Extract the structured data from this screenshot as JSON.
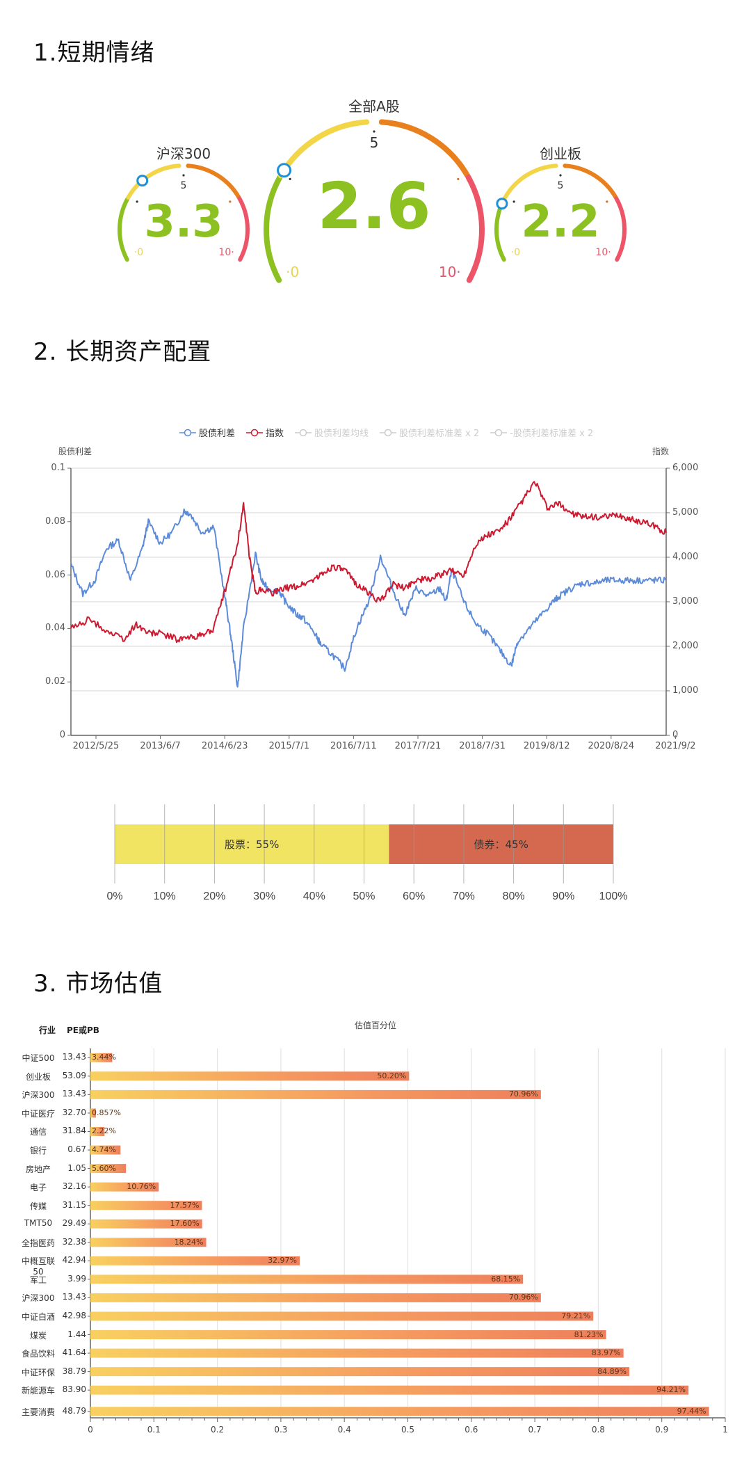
{
  "sections": {
    "s1": "1.短期情绪",
    "s2": "2. 长期资产配置",
    "s3": "3. 市场估值"
  },
  "gauges": [
    {
      "title": "沪深300",
      "value": "3.3",
      "value_num": 3.3,
      "min_label": "0",
      "mid_label": "5",
      "max_label": "10"
    },
    {
      "title": "全部A股",
      "value": "2.6",
      "value_num": 2.6,
      "min_label": "0",
      "mid_label": "5",
      "max_label": "10"
    },
    {
      "title": "创业板",
      "value": "2.2",
      "value_num": 2.2,
      "min_label": "0",
      "mid_label": "5",
      "max_label": "10"
    }
  ],
  "gauge_colors": {
    "green": "#8cc121",
    "yellow": "#f2d648",
    "orange": "#e8801d",
    "red": "#ee5468",
    "pointer": "#1f8fd6",
    "value": "#8cc121"
  },
  "chart_data": [
    {
      "type": "line",
      "title": "",
      "legend": [
        {
          "name": "股债利差",
          "color": "#5b8bd9",
          "active": true
        },
        {
          "name": "指数",
          "color": "#cc1a30",
          "active": true
        },
        {
          "name": "股债利差均线",
          "color": "#cccccc",
          "active": false
        },
        {
          "name": "股债利差标准差 x 2",
          "color": "#cccccc",
          "active": false
        },
        {
          "name": "-股债利差标准差 x 2",
          "color": "#cccccc",
          "active": false
        }
      ],
      "ylabel_left": "股债利差",
      "ylabel_right": "指数",
      "ylim_left": [
        0,
        0.1
      ],
      "ylim_right": [
        0,
        6000
      ],
      "yticks_left": [
        "0.1",
        "0.08",
        "0.06",
        "0.04",
        "0.02",
        "0"
      ],
      "yticks_right": [
        "6,000",
        "5,000",
        "4,000",
        "3,000",
        "2,000",
        "1,000",
        "0"
      ],
      "x_ticks": [
        "2012/5/25",
        "2013/6/7",
        "2014/6/23",
        "2015/7/1",
        "2016/7/11",
        "2017/7/21",
        "2018/7/31",
        "2019/8/12",
        "2020/8/24",
        "2021/9/2"
      ],
      "series": [
        {
          "name": "股债利差",
          "axis": "left",
          "x": [
            0,
            0.02,
            0.04,
            0.06,
            0.08,
            0.1,
            0.12,
            0.13,
            0.15,
            0.17,
            0.19,
            0.2,
            0.22,
            0.24,
            0.26,
            0.27,
            0.28,
            0.29,
            0.31,
            0.32,
            0.33,
            0.35,
            0.36,
            0.38,
            0.39,
            0.41,
            0.42,
            0.44,
            0.46,
            0.48,
            0.5,
            0.52,
            0.54,
            0.56,
            0.58,
            0.6,
            0.62,
            0.63,
            0.64,
            0.66,
            0.68,
            0.7,
            0.72,
            0.74,
            0.75,
            0.77,
            0.79,
            0.81,
            0.82,
            0.84,
            0.86,
            0.88,
            0.9,
            0.92,
            0.94,
            0.96,
            0.98,
            1.0
          ],
          "values": [
            0.064,
            0.053,
            0.058,
            0.07,
            0.073,
            0.058,
            0.07,
            0.08,
            0.072,
            0.076,
            0.084,
            0.083,
            0.076,
            0.078,
            0.05,
            0.035,
            0.018,
            0.04,
            0.068,
            0.058,
            0.055,
            0.054,
            0.05,
            0.045,
            0.044,
            0.038,
            0.034,
            0.03,
            0.025,
            0.04,
            0.05,
            0.067,
            0.055,
            0.045,
            0.055,
            0.052,
            0.055,
            0.05,
            0.062,
            0.05,
            0.042,
            0.038,
            0.032,
            0.026,
            0.035,
            0.04,
            0.045,
            0.05,
            0.052,
            0.055,
            0.057,
            0.057,
            0.058,
            0.058,
            0.058,
            0.058,
            0.058,
            0.058
          ]
        },
        {
          "name": "指数",
          "axis": "right",
          "x": [
            0,
            0.03,
            0.06,
            0.09,
            0.11,
            0.13,
            0.15,
            0.18,
            0.2,
            0.22,
            0.24,
            0.26,
            0.28,
            0.29,
            0.3,
            0.31,
            0.32,
            0.34,
            0.36,
            0.38,
            0.4,
            0.42,
            0.44,
            0.46,
            0.48,
            0.5,
            0.52,
            0.54,
            0.56,
            0.58,
            0.6,
            0.62,
            0.64,
            0.66,
            0.68,
            0.7,
            0.72,
            0.74,
            0.76,
            0.78,
            0.8,
            0.82,
            0.84,
            0.86,
            0.88,
            0.9,
            0.92,
            0.94,
            0.96,
            0.98,
            1.0
          ],
          "values": [
            2400,
            2600,
            2350,
            2150,
            2500,
            2300,
            2300,
            2150,
            2200,
            2250,
            2400,
            3300,
            4300,
            5200,
            4000,
            3200,
            3300,
            3200,
            3300,
            3350,
            3450,
            3600,
            3800,
            3700,
            3400,
            3200,
            3000,
            3400,
            3300,
            3500,
            3500,
            3600,
            3700,
            3600,
            4300,
            4500,
            4600,
            4900,
            5300,
            5700,
            5100,
            5200,
            5000,
            4900,
            4900,
            4900,
            4950,
            4850,
            4800,
            4700,
            4550
          ]
        }
      ]
    },
    {
      "type": "bar",
      "orientation": "horizontal-stacked",
      "categories": [
        "股票",
        "债券"
      ],
      "values": [
        55,
        45
      ],
      "labels": [
        "股票：55%",
        "债券：45%"
      ],
      "colors": [
        "#f2e463",
        "#d4694f"
      ],
      "x_ticks": [
        "0%",
        "10%",
        "20%",
        "30%",
        "40%",
        "50%",
        "60%",
        "70%",
        "80%",
        "90%",
        "100%"
      ],
      "xlim": [
        0,
        100
      ]
    },
    {
      "type": "bar",
      "orientation": "horizontal",
      "title": "估值百分位",
      "column_headers": [
        "行业",
        "PE或PB"
      ],
      "categories": [
        "中证500",
        "创业板",
        "沪深300",
        "中证医疗",
        "通信",
        "银行",
        "房地产",
        "电子",
        "传媒",
        "TMT50",
        "全指医药",
        "中概互联50",
        "军工",
        "沪深300",
        "中证白酒",
        "煤炭",
        "食品饮料",
        "中证环保",
        "新能源车",
        "主要消费"
      ],
      "pe_pb": [
        "13.43",
        "53.09",
        "13.43",
        "32.70",
        "31.84",
        "0.67",
        "1.05",
        "32.16",
        "31.15",
        "29.49",
        "32.38",
        "42.94",
        "3.99",
        "13.43",
        "42.98",
        "1.44",
        "41.64",
        "38.79",
        "83.90",
        "48.79"
      ],
      "values": [
        0.0344,
        0.502,
        0.7096,
        0.00857,
        0.0222,
        0.0474,
        0.056,
        0.1076,
        0.1757,
        0.176,
        0.1824,
        0.3297,
        0.6815,
        0.7096,
        0.7921,
        0.8123,
        0.8397,
        0.8489,
        0.9421,
        0.9744
      ],
      "value_labels": [
        "3.44%",
        "50.20%",
        "70.96%",
        "0.857%",
        "2.22%",
        "4.74%",
        "5.60%",
        "10.76%",
        "17.57%",
        "17.60%",
        "18.24%",
        "32.97%",
        "68.15%",
        "70.96%",
        "79.21%",
        "81.23%",
        "83.97%",
        "84.89%",
        "94.21%",
        "97.44%"
      ],
      "x_ticks": [
        "0",
        "0.1",
        "0.2",
        "0.3",
        "0.4",
        "0.5",
        "0.6",
        "0.7",
        "0.8",
        "0.9",
        "1"
      ],
      "xlim": [
        0,
        1
      ],
      "gradient": [
        "#f8d060",
        "#f59a60",
        "#ee7f5c"
      ]
    }
  ]
}
